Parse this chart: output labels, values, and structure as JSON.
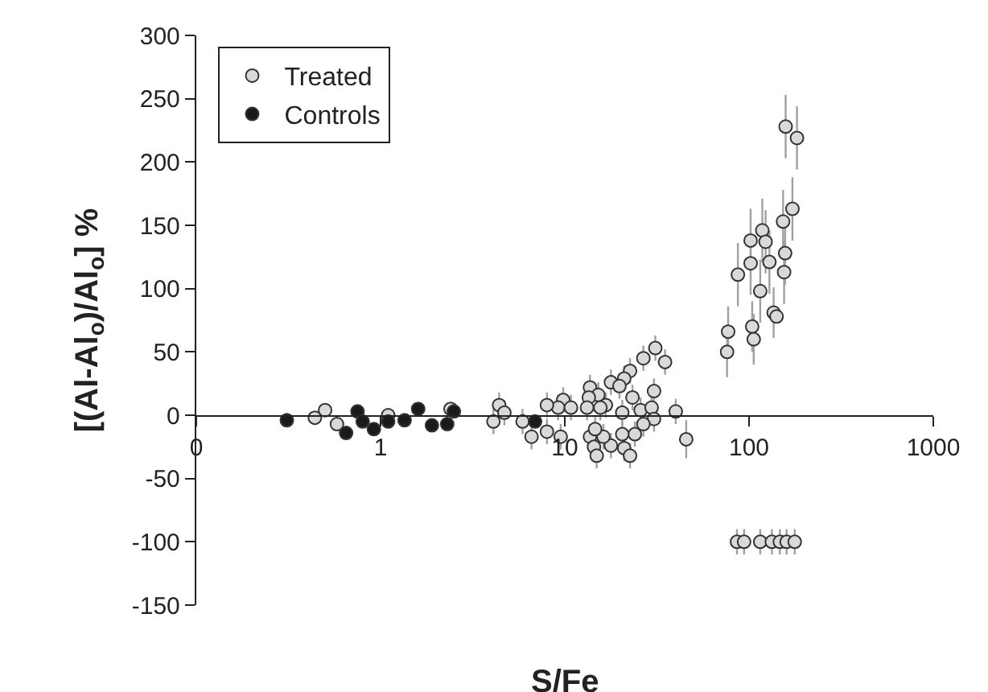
{
  "chart_data": {
    "type": "scatter",
    "xlabel": "S/Fe",
    "ylabel": "[(Al-Al$_{o}$)/Al$_{o}$] %",
    "log": "x",
    "xlim": [
      0.1,
      1000
    ],
    "xticks": [
      {
        "value": 0.1,
        "label": "0"
      },
      1,
      10,
      100,
      1000
    ],
    "ylim": [
      -150,
      300
    ],
    "yticks": [
      -150,
      -100,
      -50,
      0,
      50,
      100,
      150,
      200,
      250,
      300
    ],
    "legend": "top left",
    "marker": "circle",
    "series": [
      {
        "name": "Treated",
        "color": "#d9d9d9",
        "x": [
          158,
          182,
          172,
          153,
          118,
          102,
          123,
          157,
          102,
          129,
          155,
          87,
          115,
          136,
          141,
          77,
          76,
          104,
          106,
          86,
          94,
          115,
          133,
          147,
          160,
          177,
          31,
          35,
          26.7,
          22.6,
          21,
          17.8,
          19.8,
          23.3,
          30.5,
          13.7,
          15.2,
          13.5,
          16.7,
          9.8,
          9.2,
          8,
          10.8,
          4.4,
          4.1,
          4.7,
          5.9,
          6.6,
          8,
          9.5,
          13.2,
          15.6,
          20.5,
          25.8,
          29.6,
          40,
          30.5,
          26.7,
          24,
          20.5,
          21,
          22.6,
          17.8,
          16.2,
          13.7,
          14.4,
          14.9,
          45.6,
          14.6,
          0.44,
          0.5,
          0.58,
          1.1,
          2.4
        ],
        "values": [
          228,
          219,
          163,
          153,
          146,
          138,
          137,
          128,
          120,
          121,
          113,
          111,
          98,
          81,
          78,
          66,
          50,
          70,
          60,
          -100,
          -100,
          -100,
          -100,
          -100,
          -100,
          -100,
          53,
          42,
          45,
          35,
          29,
          26,
          23,
          14,
          19,
          22,
          16,
          14,
          8,
          12,
          6,
          8,
          6,
          8,
          -5,
          2,
          -5,
          -17,
          -13,
          -17,
          6,
          6,
          2,
          4,
          6,
          3,
          -3,
          -7,
          -15,
          -15,
          -26,
          -32,
          -24,
          -17,
          -17,
          -25,
          -32,
          -19,
          -11,
          -2,
          4,
          -7,
          0,
          5
        ],
        "errors": [
          25,
          25,
          25,
          25,
          25,
          25,
          25,
          25,
          25,
          25,
          25,
          25,
          25,
          20,
          null,
          20,
          20,
          20,
          20,
          10,
          10,
          10,
          10,
          10,
          10,
          10,
          10,
          10,
          10,
          10,
          10,
          10,
          10,
          10,
          10,
          10,
          10,
          10,
          10,
          10,
          10,
          10,
          10,
          10,
          10,
          10,
          10,
          10,
          10,
          10,
          10,
          10,
          10,
          10,
          10,
          10,
          10,
          10,
          10,
          10,
          10,
          10,
          10,
          10,
          10,
          10,
          10,
          15,
          10,
          5,
          5,
          5,
          null,
          5
        ]
      },
      {
        "name": "Controls",
        "color": "#1a1a1a",
        "x": [
          0.31,
          0.65,
          0.75,
          0.8,
          0.92,
          1.1,
          1.35,
          1.6,
          1.9,
          2.3,
          2.5,
          6.9
        ],
        "values": [
          -4,
          -14,
          3,
          -5,
          -11,
          -5,
          -4,
          5,
          -8,
          -7,
          3,
          -5
        ]
      }
    ]
  }
}
